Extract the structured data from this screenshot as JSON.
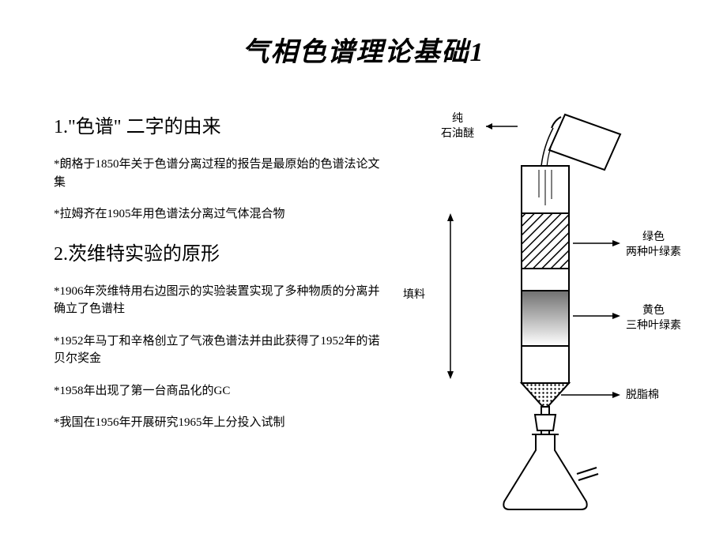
{
  "title": "气相色谱理论基础1",
  "sections": {
    "s1": {
      "heading": "1.\"色谱\" 二字的由来",
      "bullets": [
        "*朗格于1850年关于色谱分离过程的报告是最原始的色谱法论文集",
        "*拉姆齐在1905年用色谱法分离过气体混合物"
      ]
    },
    "s2": {
      "heading": "2.茨维特实验的原形",
      "bullets": [
        "*1906年茨维特用右边图示的实验装置实现了多种物质的分离并确立了色谱柱",
        "*1952年马丁和辛格创立了气液色谱法并由此获得了1952年的诺贝尔奖金",
        "*1958年出现了第一台商品化的GC",
        "*我国在1956年开展研究1965年上分投入试制"
      ]
    }
  },
  "diagram": {
    "labels": {
      "solvent": "纯\n石油醚",
      "packing": "填料",
      "green": "绿色\n两种叶绿素",
      "yellow": "黄色\n三种叶绿素",
      "cotton": "脱脂棉"
    },
    "colors": {
      "stroke": "#000000",
      "bg": "#ffffff",
      "hatch": "#000000",
      "grad_top": "#808080",
      "grad_bottom": "#ffffff"
    },
    "stroke_width": 2
  }
}
